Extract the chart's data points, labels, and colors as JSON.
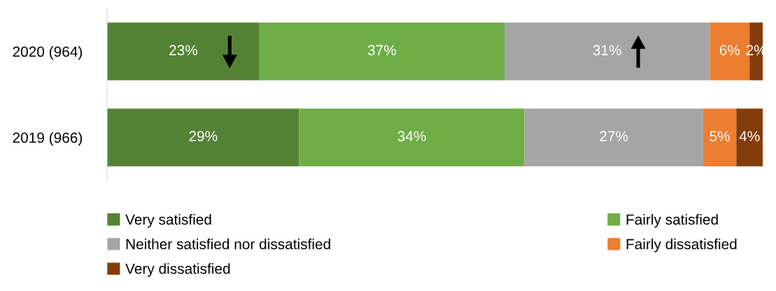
{
  "chart_data": {
    "type": "bar",
    "orientation": "horizontal",
    "stacked": true,
    "relative": false,
    "categories": [
      "2020 (964)",
      "2019 (966)"
    ],
    "series": [
      {
        "name": "Very satisfied",
        "color": "#548235",
        "values": [
          23,
          29
        ],
        "value_labels": [
          "23%",
          "29%"
        ]
      },
      {
        "name": "Fairly satisfied",
        "color": "#70ad47",
        "values": [
          37,
          34
        ],
        "value_labels": [
          "37%",
          "34%"
        ]
      },
      {
        "name": "Neither satisfied nor dissatisfied",
        "color": "#a5a5a5",
        "values": [
          31,
          27
        ],
        "value_labels": [
          "31%",
          "27%"
        ]
      },
      {
        "name": "Fairly dissatisfied",
        "color": "#ed7d31",
        "values": [
          6,
          5
        ],
        "value_labels": [
          "6%",
          "5%"
        ]
      },
      {
        "name": "Very dissatisfied",
        "color": "#843c0c",
        "values": [
          2,
          4
        ],
        "value_labels": [
          "2%",
          "4%"
        ]
      }
    ],
    "xlim": [
      0,
      99
    ],
    "legend": "bottom",
    "grid": false,
    "tick_labels": "y"
  }
}
